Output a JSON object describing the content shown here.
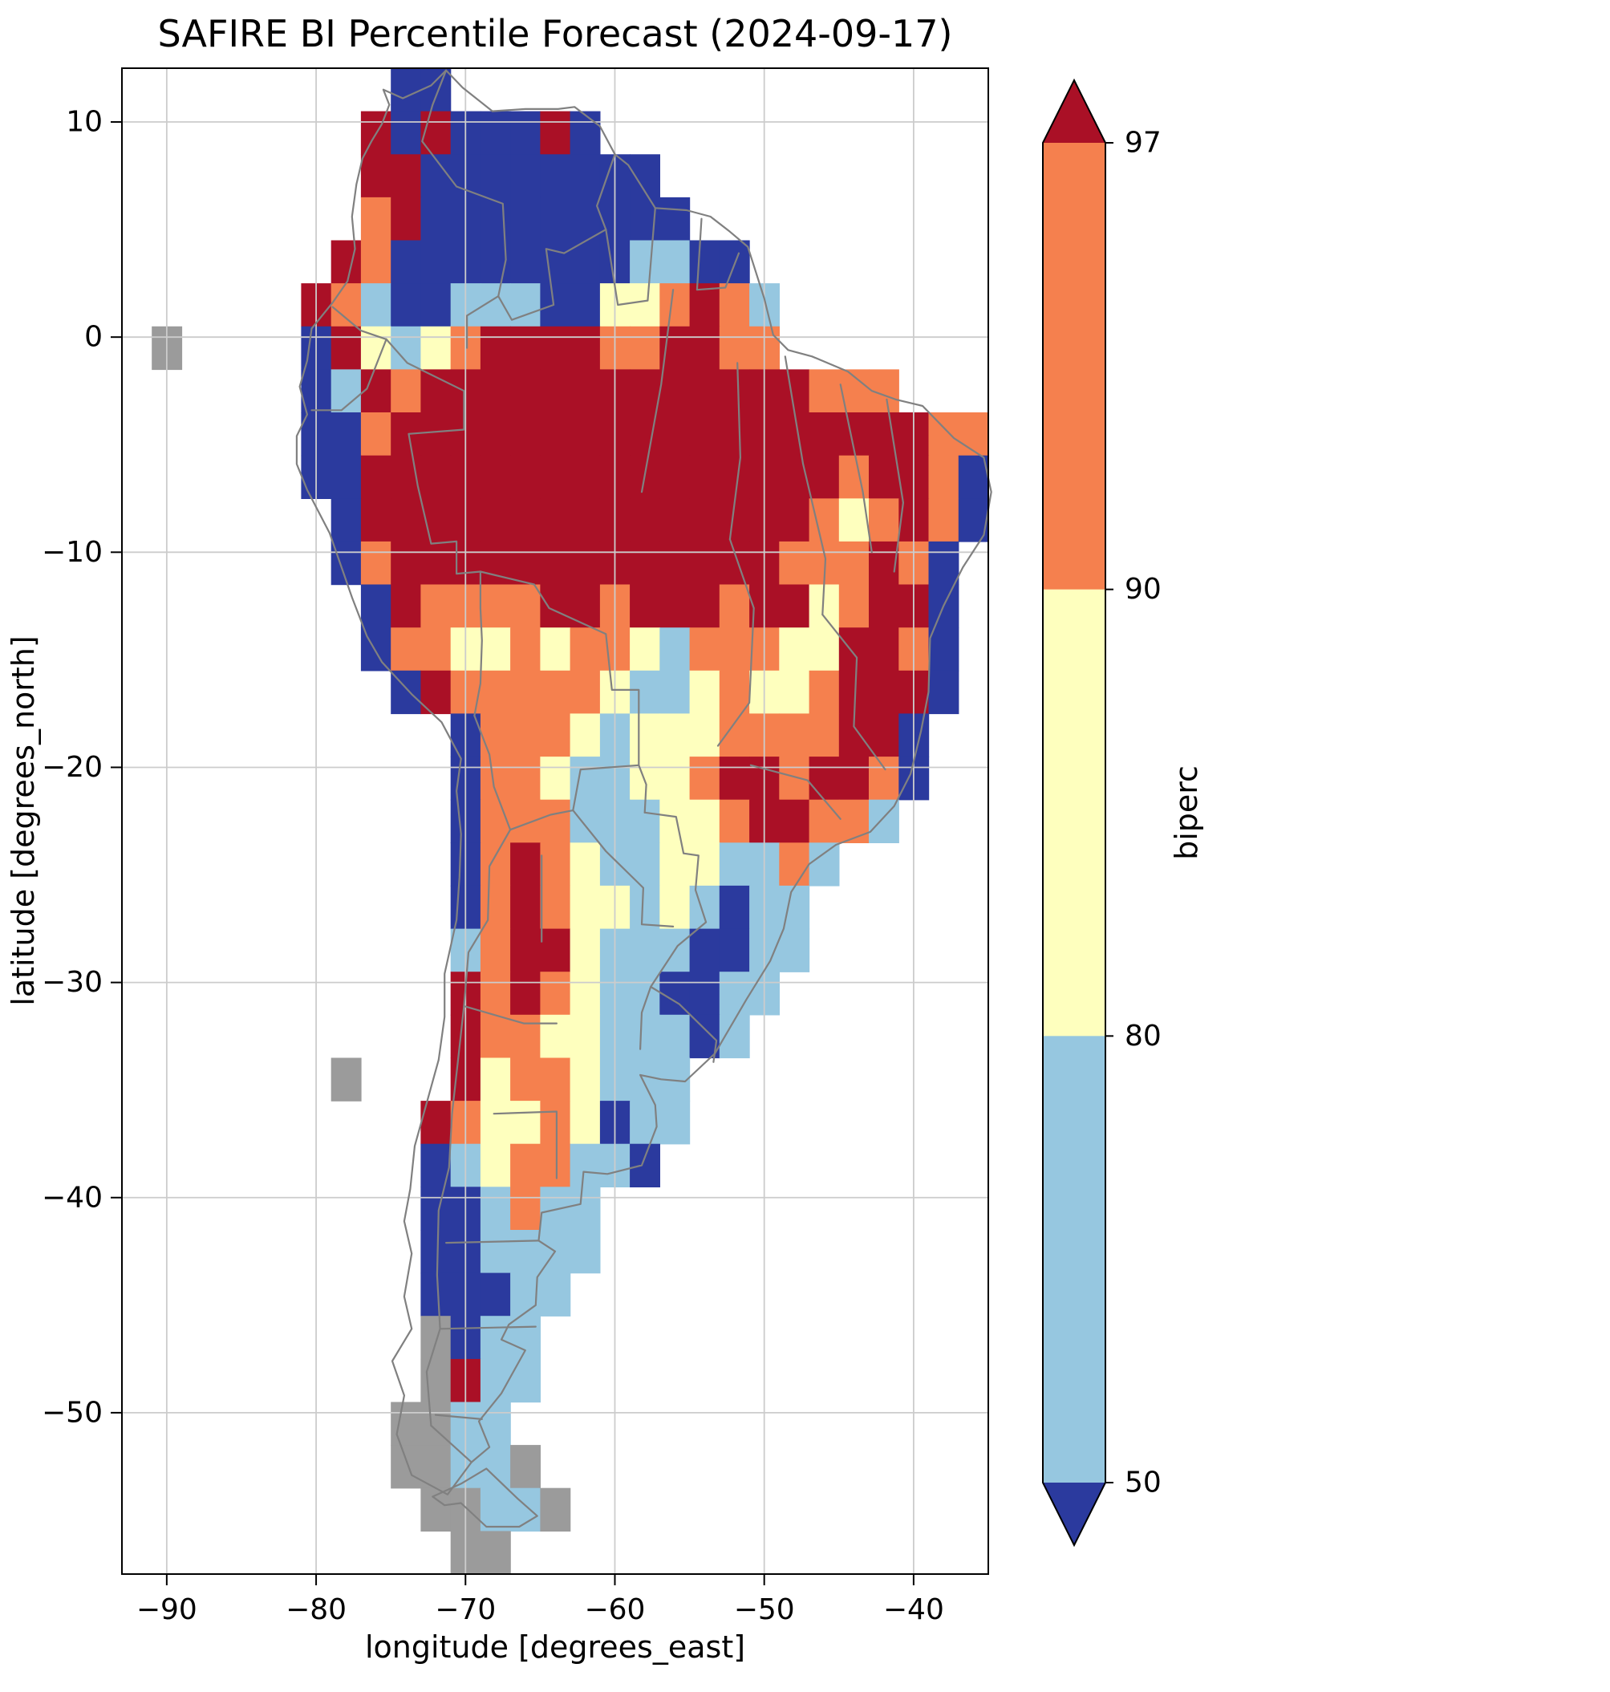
{
  "title": "SAFIRE BI Percentile Forecast (2024-09-17)",
  "chart_data": {
    "type": "heatmap",
    "title": "SAFIRE BI Percentile Forecast (2024-09-17)",
    "xlabel": "longitude [degrees_east]",
    "ylabel": "latitude [degrees_north]",
    "x_tick_values": [
      -90,
      -80,
      -70,
      -60,
      -50,
      -40
    ],
    "x_tick_labels": [
      "−90",
      "−80",
      "−70",
      "−60",
      "−50",
      "−40"
    ],
    "y_tick_values": [
      10,
      0,
      -10,
      -20,
      -30,
      -40,
      -50
    ],
    "y_tick_labels": [
      "10",
      "0",
      "−10",
      "−20",
      "−30",
      "−40",
      "−50"
    ],
    "lon_range": [
      -93,
      -35
    ],
    "lat_range": [
      -57.5,
      12.5
    ],
    "grid_on": true,
    "grid_color": "#cccccc",
    "border_color": "#808080",
    "colorbar": {
      "label": "biperc",
      "levels": [
        50,
        80,
        90,
        97
      ],
      "tick_labels": [
        "97",
        "90",
        "80",
        "50"
      ],
      "extend": "both",
      "colors": {
        "under_50": "#2b3a9e",
        "band_50_80": "#96c7e0",
        "band_80_90": "#feffbe",
        "band_90_97": "#f5804e",
        "over_97": "#aa1026"
      }
    },
    "category_colors": {
      "1": "#2b3a9e",
      "2": "#96c7e0",
      "3": "#feffbe",
      "4": "#f5804e",
      "5": "#aa1026",
      "g": "#9b9b9b"
    },
    "category_meaning": {
      "1": "below 50th percentile",
      "2": "50-80",
      "3": "80-90",
      "4": "90-97",
      "5": "above 97th percentile",
      "g": "land, no data"
    },
    "grid": {
      "lon_start": -93,
      "lat_start_top": 12.5,
      "cell_deg": 2,
      "rows": [
        ".........11..................",
        "........51511151.............",
        "........5511111111...........",
        "........45111111111..........",
        ".......54111111112211........",
        "......5421122211334542.......",
        ".g....1532345555445544.......",
        "......12545555555555555444...",
        "......11455555555555555555544",
        "......11555555555555555545541",
        ".......1555555555555555434541",
        ".......145555555555555444541.",
        "........15444455455545534551.",
        "........14433434432444335541.",
        ".........1544444322343345551.",
        "...........1444323334444551..",
        "...........1443223345545541..",
        "...........144422233455442...",
        "...........1454322332242.....",
        "...........145433232122......",
        "...........245532221122......",
        "...........54543221122.......",
        "...........5443322212........",
        ".......g...53443222..........",
        "..........543343122..........",
        "..........12344221...........",
        "..........112422.............",
        "..........112222.............",
        "..........11122..............",
        "..........g122...............",
        "..........g522...............",
        ".........gg22................",
        ".........gg22g...............",
        "..........gg22g..............",
        "...........gg................"
      ]
    },
    "borders": [
      [
        [
          -75.5,
          11.5
        ],
        [
          -74.2,
          11.1
        ],
        [
          -72.3,
          11.7
        ],
        [
          -71.3,
          12.4
        ],
        [
          -70.2,
          11.6
        ],
        [
          -68.2,
          10.5
        ],
        [
          -66,
          10.6
        ],
        [
          -63.8,
          10.6
        ],
        [
          -62.7,
          10.7
        ],
        [
          -61,
          9.8
        ],
        [
          -60,
          8.5
        ],
        [
          -59.1,
          8
        ],
        [
          -57.3,
          6
        ],
        [
          -55.2,
          5.9
        ],
        [
          -53.6,
          5.6
        ],
        [
          -52.3,
          4.9
        ],
        [
          -51.1,
          4.2
        ],
        [
          -50,
          1.8
        ],
        [
          -49.4,
          0.1
        ],
        [
          -48.4,
          -0.6
        ],
        [
          -46.8,
          -0.9
        ],
        [
          -44.4,
          -1.6
        ],
        [
          -42.8,
          -2.5
        ],
        [
          -41.2,
          -2.9
        ],
        [
          -39.4,
          -3.2
        ],
        [
          -37.3,
          -4.7
        ],
        [
          -35.3,
          -5.6
        ],
        [
          -34.8,
          -7.2
        ],
        [
          -35.3,
          -9.2
        ],
        [
          -36.7,
          -10.7
        ],
        [
          -38,
          -12.5
        ],
        [
          -38.9,
          -14
        ],
        [
          -39,
          -16.5
        ],
        [
          -39.5,
          -18.3
        ],
        [
          -40.2,
          -20.3
        ],
        [
          -41.3,
          -21.8
        ],
        [
          -42.9,
          -23
        ],
        [
          -45.2,
          -23.6
        ],
        [
          -47,
          -24.5
        ],
        [
          -48.2,
          -25.8
        ],
        [
          -48.7,
          -27.5
        ],
        [
          -49.6,
          -29
        ],
        [
          -51.2,
          -30.8
        ],
        [
          -53.3,
          -33.3
        ],
        [
          -55.3,
          -34.6
        ],
        [
          -56.9,
          -34.5
        ],
        [
          -58.3,
          -34.3
        ],
        [
          -57.3,
          -35.7
        ],
        [
          -57.2,
          -36.7
        ],
        [
          -58.2,
          -38.5
        ],
        [
          -60.5,
          -38.9
        ],
        [
          -62.1,
          -38.8
        ],
        [
          -62.3,
          -40.3
        ],
        [
          -64.9,
          -40.7
        ],
        [
          -65.1,
          -42
        ],
        [
          -64,
          -42.5
        ],
        [
          -65.2,
          -43.7
        ],
        [
          -65.3,
          -45
        ],
        [
          -67.1,
          -45.9
        ],
        [
          -67.6,
          -46.6
        ],
        [
          -66,
          -47.1
        ],
        [
          -67.6,
          -49.1
        ],
        [
          -69.1,
          -50.4
        ],
        [
          -68.4,
          -51.6
        ],
        [
          -69.6,
          -52.3
        ],
        [
          -71.2,
          -53.8
        ],
        [
          -73.6,
          -52.9
        ],
        [
          -74.6,
          -51
        ],
        [
          -74.1,
          -49.2
        ],
        [
          -74.9,
          -47.6
        ],
        [
          -73.6,
          -46.1
        ],
        [
          -74.1,
          -44.6
        ],
        [
          -73.6,
          -42.6
        ],
        [
          -74.1,
          -41.1
        ],
        [
          -73.7,
          -39.6
        ],
        [
          -73.4,
          -37.6
        ],
        [
          -72.6,
          -35.6
        ],
        [
          -71.8,
          -33.6
        ],
        [
          -71.4,
          -31.6
        ],
        [
          -71.4,
          -29.6
        ],
        [
          -70.6,
          -27.1
        ],
        [
          -70.4,
          -25.1
        ],
        [
          -70.3,
          -23.1
        ],
        [
          -70.6,
          -21.1
        ],
        [
          -70.3,
          -19.6
        ],
        [
          -71.6,
          -17.9
        ],
        [
          -73.6,
          -16.6
        ],
        [
          -75.6,
          -15.1
        ],
        [
          -76.6,
          -13.9
        ],
        [
          -77.6,
          -12.1
        ],
        [
          -79.1,
          -9.1
        ],
        [
          -80.6,
          -7.1
        ],
        [
          -81.3,
          -5.9
        ],
        [
          -81.3,
          -4.6
        ],
        [
          -80.6,
          -3.6
        ],
        [
          -81.1,
          -2.3
        ],
        [
          -80.6,
          -1.1
        ],
        [
          -80.3,
          0.4
        ],
        [
          -79.6,
          1
        ],
        [
          -78.9,
          1.6
        ],
        [
          -77.9,
          2.6
        ],
        [
          -77.4,
          4.1
        ],
        [
          -77.6,
          5.6
        ],
        [
          -77.3,
          7.1
        ],
        [
          -76.9,
          8.3
        ],
        [
          -76.3,
          9.1
        ],
        [
          -75.6,
          9.9
        ],
        [
          -75.1,
          10.8
        ],
        [
          -75.5,
          11.5
        ]
      ],
      [
        [
          -68.6,
          -52.6
        ],
        [
          -66.5,
          -54
        ],
        [
          -65.2,
          -54.8
        ],
        [
          -66.4,
          -55.3
        ],
        [
          -68.6,
          -55.3
        ],
        [
          -70.3,
          -54.2
        ],
        [
          -71.4,
          -54.3
        ],
        [
          -72.2,
          -53.9
        ],
        [
          -70.3,
          -53.3
        ],
        [
          -68.6,
          -52.6
        ]
      ],
      [
        [
          -71.3,
          12.4
        ],
        [
          -72.2,
          10.8
        ],
        [
          -72.9,
          9.1
        ],
        [
          -70.6,
          7
        ],
        [
          -67.5,
          6.2
        ],
        [
          -67.3,
          3.6
        ],
        [
          -67.8,
          1.9
        ],
        [
          -69.9,
          1
        ],
        [
          -69.9,
          -0.5
        ]
      ],
      [
        [
          -60,
          8.5
        ],
        [
          -61.2,
          6.1
        ],
        [
          -60.6,
          5
        ],
        [
          -63.4,
          3.9
        ],
        [
          -64.6,
          4.1
        ],
        [
          -64.1,
          1.5
        ],
        [
          -66.9,
          0.8
        ],
        [
          -67.8,
          1.9
        ]
      ],
      [
        [
          -57.3,
          6
        ],
        [
          -57.8,
          1.7
        ],
        [
          -59.8,
          1.5
        ],
        [
          -60.6,
          5
        ]
      ],
      [
        [
          -54.2,
          5.5
        ],
        [
          -54.5,
          2.2
        ],
        [
          -52.6,
          2.3
        ],
        [
          -51.7,
          3.9
        ]
      ],
      [
        [
          -78.9,
          1.4
        ],
        [
          -77,
          0.3
        ],
        [
          -75.3,
          -0.1
        ]
      ],
      [
        [
          -80.3,
          -3.4
        ],
        [
          -78.3,
          -3.4
        ],
        [
          -76.6,
          -2.4
        ],
        [
          -75.3,
          -0.1
        ]
      ],
      [
        [
          -75.3,
          -0.1
        ],
        [
          -73.9,
          -1.2
        ],
        [
          -70.1,
          -2.5
        ],
        [
          -70.1,
          -4.3
        ],
        [
          -73.8,
          -4.5
        ],
        [
          -73.2,
          -6.9
        ],
        [
          -72.3,
          -9.6
        ],
        [
          -70.6,
          -9.5
        ],
        [
          -70.6,
          -11
        ],
        [
          -69,
          -10.9
        ]
      ],
      [
        [
          -69,
          -10.9
        ],
        [
          -65.4,
          -11.5
        ],
        [
          -64.4,
          -12.6
        ],
        [
          -60.6,
          -13.8
        ],
        [
          -60.2,
          -16.4
        ],
        [
          -58.4,
          -16.4
        ],
        [
          -58.4,
          -19.9
        ],
        [
          -57.9,
          -20.8
        ],
        [
          -58,
          -22.1
        ]
      ],
      [
        [
          -58,
          -22.1
        ],
        [
          -55.9,
          -22.3
        ],
        [
          -55.4,
          -24
        ],
        [
          -54.4,
          -24.1
        ],
        [
          -54.6,
          -25.7
        ],
        [
          -53.9,
          -27.2
        ],
        [
          -55.8,
          -28.3
        ],
        [
          -57.6,
          -30.2
        ],
        [
          -55.7,
          -31
        ],
        [
          -53.2,
          -32.7
        ],
        [
          -53.4,
          -33.7
        ]
      ],
      [
        [
          -69.4,
          -17.6
        ],
        [
          -69,
          -16.1
        ],
        [
          -68.9,
          -14.1
        ],
        [
          -69,
          -12.6
        ],
        [
          -69,
          -10.9
        ]
      ],
      [
        [
          -69.4,
          -17.6
        ],
        [
          -68.4,
          -19.4
        ],
        [
          -68.1,
          -20.9
        ],
        [
          -67,
          -22.9
        ]
      ],
      [
        [
          -67,
          -22.9
        ],
        [
          -68.4,
          -24.6
        ],
        [
          -68.5,
          -27.1
        ],
        [
          -69.8,
          -28.6
        ],
        [
          -70.1,
          -31.1
        ],
        [
          -70.5,
          -33.6
        ],
        [
          -70.9,
          -36.1
        ],
        [
          -71.1,
          -38.6
        ],
        [
          -71.8,
          -40.6
        ],
        [
          -71.9,
          -43.6
        ],
        [
          -71.7,
          -46.1
        ],
        [
          -72.6,
          -48.1
        ],
        [
          -72.3,
          -50.6
        ],
        [
          -69.6,
          -52.3
        ]
      ],
      [
        [
          -67,
          -22.9
        ],
        [
          -64.3,
          -22.2
        ],
        [
          -62.8,
          -22
        ]
      ],
      [
        [
          -62.8,
          -22
        ],
        [
          -62.3,
          -20.1
        ],
        [
          -58.4,
          -19.9
        ]
      ],
      [
        [
          -62.8,
          -22
        ],
        [
          -60.6,
          -23.9
        ],
        [
          -58.1,
          -25.6
        ],
        [
          -58.2,
          -27.3
        ],
        [
          -56.1,
          -27.4
        ]
      ],
      [
        [
          -58.3,
          -33.1
        ],
        [
          -58.2,
          -31.4
        ],
        [
          -57.6,
          -30.2
        ]
      ],
      [
        [
          -56.1,
          2.2
        ],
        [
          -56.9,
          -2.2
        ],
        [
          -58.2,
          -7.2
        ]
      ],
      [
        [
          -51.8,
          -1.2
        ],
        [
          -51.6,
          -5.6
        ],
        [
          -52.3,
          -9.4
        ]
      ],
      [
        [
          -48.6,
          -0.9
        ],
        [
          -47.4,
          -5.9
        ],
        [
          -45.9,
          -10.3
        ],
        [
          -46.1,
          -12.9
        ]
      ],
      [
        [
          -44.9,
          -2.2
        ],
        [
          -43.4,
          -7.2
        ],
        [
          -42.8,
          -10
        ]
      ],
      [
        [
          -41.8,
          -2.9
        ],
        [
          -40.7,
          -7.7
        ],
        [
          -41.3,
          -10.9
        ]
      ],
      [
        [
          -46.1,
          -12.9
        ],
        [
          -43.8,
          -14.9
        ],
        [
          -44,
          -18.1
        ],
        [
          -41.9,
          -20.1
        ]
      ],
      [
        [
          -50.9,
          -19.9
        ],
        [
          -47.1,
          -20.6
        ],
        [
          -44.9,
          -22.4
        ]
      ],
      [
        [
          -53.1,
          -19
        ],
        [
          -51,
          -17
        ],
        [
          -50.7,
          -12.6
        ],
        [
          -52.3,
          -9.4
        ]
      ],
      [
        [
          -64.9,
          -24.1
        ],
        [
          -64.9,
          -28.1
        ]
      ],
      [
        [
          -70.1,
          -31.1
        ],
        [
          -66.1,
          -31.9
        ],
        [
          -63.9,
          -31.9
        ]
      ],
      [
        [
          -68.1,
          -36.1
        ],
        [
          -63.9,
          -36
        ],
        [
          -63.9,
          -39.1
        ]
      ],
      [
        [
          -71.3,
          -42.1
        ],
        [
          -65.1,
          -42
        ]
      ],
      [
        [
          -71.7,
          -46.1
        ],
        [
          -65.3,
          -46
        ]
      ],
      [
        [
          -72,
          -50.1
        ],
        [
          -68.9,
          -50.3
        ]
      ]
    ]
  }
}
